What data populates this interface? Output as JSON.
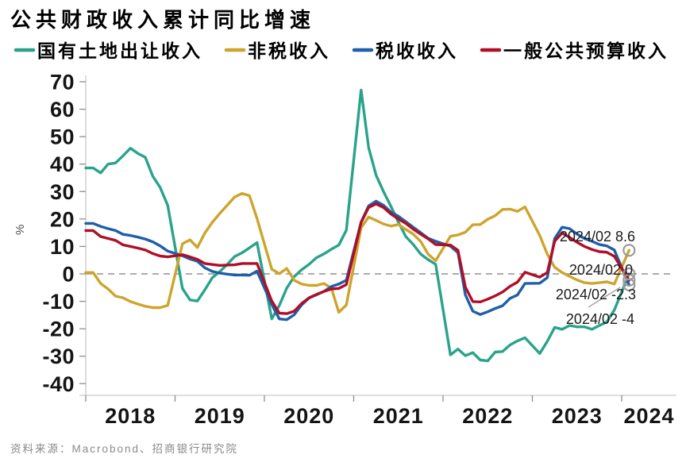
{
  "header": {
    "title": "公共财政收入累计同比增速"
  },
  "source": {
    "text": "资料来源：Macrobond、招商银行研究院"
  },
  "colors": {
    "land": "#2AA38B",
    "nontax": "#CDA52D",
    "tax": "#1F5FA8",
    "budget": "#B10E26",
    "zero_line": "#8f8f8f",
    "axis": "#c9c9c9",
    "tick": "#8f8f8f",
    "endpoint_circle": "#9b9b9b",
    "annotation_leader": "#ababab",
    "source_text": "#8a8a8a"
  },
  "chart_data": {
    "type": "line",
    "title": "公共财政收入累计同比增速",
    "xlabel": "",
    "ylabel": "%",
    "ylim": [
      -40,
      70
    ],
    "yticks": [
      70,
      60,
      50,
      40,
      30,
      20,
      10,
      0,
      -10,
      -20,
      -30,
      -40
    ],
    "xticks": [
      2018,
      2019,
      2020,
      2021,
      2022,
      2023,
      2024
    ],
    "x_range": [
      2018.0,
      2024.6
    ],
    "x_unit": "decimal year, monthly cumulative YoY %, Feb–Dec each year (Jan–Feb combined)",
    "grid": false,
    "zero_line_dashed": true,
    "legend_position": "top",
    "series": [
      {
        "key": "land",
        "name": "国有土地出让收入",
        "color": "#2AA38B",
        "points": [
          [
            2018.0,
            38.6
          ],
          [
            2018.083,
            38.6
          ],
          [
            2018.167,
            36.8
          ],
          [
            2018.25,
            40.0
          ],
          [
            2018.333,
            40.4
          ],
          [
            2018.417,
            43.0
          ],
          [
            2018.5,
            45.8
          ],
          [
            2018.583,
            43.9
          ],
          [
            2018.667,
            42.5
          ],
          [
            2018.75,
            35.6
          ],
          [
            2018.833,
            31.5
          ],
          [
            2018.917,
            25.0
          ],
          [
            2019.083,
            -5.3
          ],
          [
            2019.167,
            -9.5
          ],
          [
            2019.25,
            -9.9
          ],
          [
            2019.333,
            -5.8
          ],
          [
            2019.417,
            -1.4
          ],
          [
            2019.5,
            0.8
          ],
          [
            2019.583,
            3.4
          ],
          [
            2019.667,
            6.3
          ],
          [
            2019.75,
            7.7
          ],
          [
            2019.833,
            9.5
          ],
          [
            2019.917,
            11.4
          ],
          [
            2020.083,
            -16.4
          ],
          [
            2020.167,
            -11.5
          ],
          [
            2020.25,
            -5.2
          ],
          [
            2020.333,
            -1.0
          ],
          [
            2020.417,
            1.5
          ],
          [
            2020.5,
            3.5
          ],
          [
            2020.583,
            5.9
          ],
          [
            2020.667,
            7.3
          ],
          [
            2020.75,
            9.0
          ],
          [
            2020.833,
            10.5
          ],
          [
            2020.917,
            15.9
          ],
          [
            2021.083,
            67.0
          ],
          [
            2021.167,
            46.0
          ],
          [
            2021.25,
            36.0
          ],
          [
            2021.333,
            30.0
          ],
          [
            2021.417,
            24.6
          ],
          [
            2021.5,
            18.8
          ],
          [
            2021.583,
            13.6
          ],
          [
            2021.667,
            10.7
          ],
          [
            2021.75,
            7.2
          ],
          [
            2021.833,
            5.2
          ],
          [
            2021.917,
            3.5
          ],
          [
            2022.083,
            -29.5
          ],
          [
            2022.167,
            -27.4
          ],
          [
            2022.25,
            -29.8
          ],
          [
            2022.333,
            -28.7
          ],
          [
            2022.417,
            -31.4
          ],
          [
            2022.5,
            -31.7
          ],
          [
            2022.583,
            -28.5
          ],
          [
            2022.667,
            -28.3
          ],
          [
            2022.75,
            -25.9
          ],
          [
            2022.833,
            -24.4
          ],
          [
            2022.917,
            -23.3
          ],
          [
            2023.083,
            -29.0
          ],
          [
            2023.167,
            -24.6
          ],
          [
            2023.25,
            -19.5
          ],
          [
            2023.333,
            -20.2
          ],
          [
            2023.417,
            -18.8
          ],
          [
            2023.5,
            -19.3
          ],
          [
            2023.583,
            -19.3
          ],
          [
            2023.667,
            -20.2
          ],
          [
            2023.75,
            -18.8
          ],
          [
            2023.833,
            -17.5
          ],
          [
            2023.917,
            -13.2
          ],
          [
            2024.083,
            0.0
          ]
        ]
      },
      {
        "key": "nontax",
        "name": "非税收入",
        "color": "#CDA52D",
        "points": [
          [
            2018.0,
            0.5
          ],
          [
            2018.083,
            0.5
          ],
          [
            2018.167,
            -3.5
          ],
          [
            2018.25,
            -5.5
          ],
          [
            2018.333,
            -8.1
          ],
          [
            2018.417,
            -8.7
          ],
          [
            2018.5,
            -10.1
          ],
          [
            2018.583,
            -11.0
          ],
          [
            2018.667,
            -11.8
          ],
          [
            2018.75,
            -12.3
          ],
          [
            2018.833,
            -12.3
          ],
          [
            2018.917,
            -11.5
          ],
          [
            2019.083,
            11.0
          ],
          [
            2019.167,
            12.4
          ],
          [
            2019.25,
            9.6
          ],
          [
            2019.333,
            14.9
          ],
          [
            2019.417,
            18.8
          ],
          [
            2019.5,
            22.0
          ],
          [
            2019.583,
            25.0
          ],
          [
            2019.667,
            28.0
          ],
          [
            2019.75,
            29.3
          ],
          [
            2019.833,
            28.5
          ],
          [
            2019.917,
            20.2
          ],
          [
            2020.083,
            1.7
          ],
          [
            2020.167,
            0.1
          ],
          [
            2020.25,
            2.0
          ],
          [
            2020.333,
            -2.3
          ],
          [
            2020.417,
            -3.7
          ],
          [
            2020.5,
            -4.2
          ],
          [
            2020.583,
            -4.2
          ],
          [
            2020.667,
            -3.5
          ],
          [
            2020.75,
            -5.2
          ],
          [
            2020.833,
            -14.0
          ],
          [
            2020.917,
            -11.3
          ],
          [
            2021.083,
            16.8
          ],
          [
            2021.167,
            20.7
          ],
          [
            2021.25,
            19.5
          ],
          [
            2021.333,
            18.2
          ],
          [
            2021.417,
            17.4
          ],
          [
            2021.5,
            18.0
          ],
          [
            2021.583,
            16.2
          ],
          [
            2021.667,
            14.5
          ],
          [
            2021.75,
            11.8
          ],
          [
            2021.833,
            7.2
          ],
          [
            2021.917,
            4.8
          ],
          [
            2022.083,
            13.7
          ],
          [
            2022.167,
            14.2
          ],
          [
            2022.25,
            15.2
          ],
          [
            2022.333,
            17.9
          ],
          [
            2022.417,
            18.0
          ],
          [
            2022.5,
            19.9
          ],
          [
            2022.583,
            21.2
          ],
          [
            2022.667,
            23.5
          ],
          [
            2022.75,
            23.6
          ],
          [
            2022.833,
            22.8
          ],
          [
            2022.917,
            24.4
          ],
          [
            2023.083,
            14.0
          ],
          [
            2023.167,
            7.2
          ],
          [
            2023.25,
            2.4
          ],
          [
            2023.333,
            0.5
          ],
          [
            2023.417,
            -0.9
          ],
          [
            2023.5,
            -2.2
          ],
          [
            2023.583,
            -3.2
          ],
          [
            2023.667,
            -3.5
          ],
          [
            2023.75,
            -3.2
          ],
          [
            2023.833,
            -2.9
          ],
          [
            2023.917,
            -3.7
          ],
          [
            2024.083,
            8.6
          ]
        ]
      },
      {
        "key": "tax",
        "name": "税收收入",
        "color": "#1F5FA8",
        "points": [
          [
            2018.0,
            18.4
          ],
          [
            2018.083,
            18.4
          ],
          [
            2018.167,
            17.3
          ],
          [
            2018.25,
            16.5
          ],
          [
            2018.333,
            15.8
          ],
          [
            2018.417,
            14.4
          ],
          [
            2018.5,
            14.0
          ],
          [
            2018.583,
            13.4
          ],
          [
            2018.667,
            12.7
          ],
          [
            2018.75,
            11.7
          ],
          [
            2018.833,
            10.2
          ],
          [
            2018.917,
            8.3
          ],
          [
            2019.083,
            6.6
          ],
          [
            2019.167,
            5.4
          ],
          [
            2019.25,
            4.6
          ],
          [
            2019.333,
            2.2
          ],
          [
            2019.417,
            0.9
          ],
          [
            2019.5,
            0.3
          ],
          [
            2019.583,
            -0.1
          ],
          [
            2019.667,
            -0.4
          ],
          [
            2019.75,
            -0.4
          ],
          [
            2019.833,
            -0.5
          ],
          [
            2019.917,
            1.0
          ],
          [
            2020.083,
            -11.2
          ],
          [
            2020.167,
            -16.4
          ],
          [
            2020.25,
            -16.7
          ],
          [
            2020.333,
            -14.9
          ],
          [
            2020.417,
            -11.3
          ],
          [
            2020.5,
            -8.8
          ],
          [
            2020.583,
            -7.6
          ],
          [
            2020.667,
            -6.4
          ],
          [
            2020.75,
            -4.6
          ],
          [
            2020.833,
            -3.7
          ],
          [
            2020.917,
            -2.3
          ],
          [
            2021.083,
            18.9
          ],
          [
            2021.167,
            24.8
          ],
          [
            2021.25,
            26.5
          ],
          [
            2021.333,
            25.0
          ],
          [
            2021.417,
            22.5
          ],
          [
            2021.5,
            21.0
          ],
          [
            2021.583,
            19.0
          ],
          [
            2021.667,
            17.0
          ],
          [
            2021.75,
            15.0
          ],
          [
            2021.833,
            13.0
          ],
          [
            2021.917,
            11.9
          ],
          [
            2022.083,
            10.1
          ],
          [
            2022.167,
            7.7
          ],
          [
            2022.25,
            -7.6
          ],
          [
            2022.333,
            -13.6
          ],
          [
            2022.417,
            -14.8
          ],
          [
            2022.5,
            -13.8
          ],
          [
            2022.583,
            -12.6
          ],
          [
            2022.667,
            -11.6
          ],
          [
            2022.75,
            -8.9
          ],
          [
            2022.833,
            -7.7
          ],
          [
            2022.917,
            -3.5
          ],
          [
            2023.083,
            -3.4
          ],
          [
            2023.167,
            -1.4
          ],
          [
            2023.25,
            12.9
          ],
          [
            2023.333,
            17.0
          ],
          [
            2023.417,
            16.5
          ],
          [
            2023.5,
            14.5
          ],
          [
            2023.583,
            12.9
          ],
          [
            2023.667,
            11.9
          ],
          [
            2023.75,
            10.7
          ],
          [
            2023.833,
            10.2
          ],
          [
            2023.917,
            8.7
          ],
          [
            2024.083,
            -4.0
          ]
        ]
      },
      {
        "key": "budget",
        "name": "一般公共预算收入",
        "color": "#B10E26",
        "points": [
          [
            2018.0,
            15.8
          ],
          [
            2018.083,
            15.8
          ],
          [
            2018.167,
            13.6
          ],
          [
            2018.25,
            12.9
          ],
          [
            2018.333,
            12.2
          ],
          [
            2018.417,
            10.6
          ],
          [
            2018.5,
            10.0
          ],
          [
            2018.583,
            9.4
          ],
          [
            2018.667,
            8.7
          ],
          [
            2018.75,
            7.4
          ],
          [
            2018.833,
            6.5
          ],
          [
            2018.917,
            6.2
          ],
          [
            2019.083,
            7.0
          ],
          [
            2019.167,
            6.2
          ],
          [
            2019.25,
            5.3
          ],
          [
            2019.333,
            3.8
          ],
          [
            2019.417,
            3.4
          ],
          [
            2019.5,
            3.1
          ],
          [
            2019.583,
            3.2
          ],
          [
            2019.667,
            3.3
          ],
          [
            2019.75,
            3.8
          ],
          [
            2019.833,
            3.8
          ],
          [
            2019.917,
            3.8
          ],
          [
            2020.083,
            -9.9
          ],
          [
            2020.167,
            -14.3
          ],
          [
            2020.25,
            -14.5
          ],
          [
            2020.333,
            -13.6
          ],
          [
            2020.417,
            -10.8
          ],
          [
            2020.5,
            -8.7
          ],
          [
            2020.583,
            -7.5
          ],
          [
            2020.667,
            -6.4
          ],
          [
            2020.75,
            -5.5
          ],
          [
            2020.833,
            -5.3
          ],
          [
            2020.917,
            -3.9
          ],
          [
            2021.083,
            18.7
          ],
          [
            2021.167,
            24.2
          ],
          [
            2021.25,
            25.5
          ],
          [
            2021.333,
            24.2
          ],
          [
            2021.417,
            21.8
          ],
          [
            2021.5,
            20.0
          ],
          [
            2021.583,
            18.4
          ],
          [
            2021.667,
            16.3
          ],
          [
            2021.75,
            14.5
          ],
          [
            2021.833,
            12.8
          ],
          [
            2021.917,
            10.7
          ],
          [
            2022.083,
            10.5
          ],
          [
            2022.167,
            8.6
          ],
          [
            2022.25,
            -4.8
          ],
          [
            2022.333,
            -10.1
          ],
          [
            2022.417,
            -10.2
          ],
          [
            2022.5,
            -9.2
          ],
          [
            2022.583,
            -8.0
          ],
          [
            2022.667,
            -6.6
          ],
          [
            2022.75,
            -4.5
          ],
          [
            2022.833,
            -3.0
          ],
          [
            2022.917,
            0.6
          ],
          [
            2023.083,
            -1.2
          ],
          [
            2023.167,
            0.5
          ],
          [
            2023.25,
            11.9
          ],
          [
            2023.333,
            14.9
          ],
          [
            2023.417,
            13.3
          ],
          [
            2023.5,
            11.5
          ],
          [
            2023.583,
            10.0
          ],
          [
            2023.667,
            8.9
          ],
          [
            2023.75,
            8.1
          ],
          [
            2023.833,
            7.9
          ],
          [
            2023.917,
            6.4
          ],
          [
            2024.083,
            -2.3
          ]
        ]
      }
    ],
    "annotations": [
      {
        "label": "2024/02 8.6",
        "date": "2024/02",
        "value": 8.6,
        "series": "非税收入"
      },
      {
        "label": "2024/02 0",
        "date": "2024/02",
        "value": 0,
        "series": "国有土地出让收入"
      },
      {
        "label": "2024/02 -2.3",
        "date": "2024/02",
        "value": -2.3,
        "series": "一般公共预算收入"
      },
      {
        "label": "2024/02 -4",
        "date": "2024/02",
        "value": -4,
        "series": "税收收入"
      }
    ],
    "endpoint_markers": true
  }
}
